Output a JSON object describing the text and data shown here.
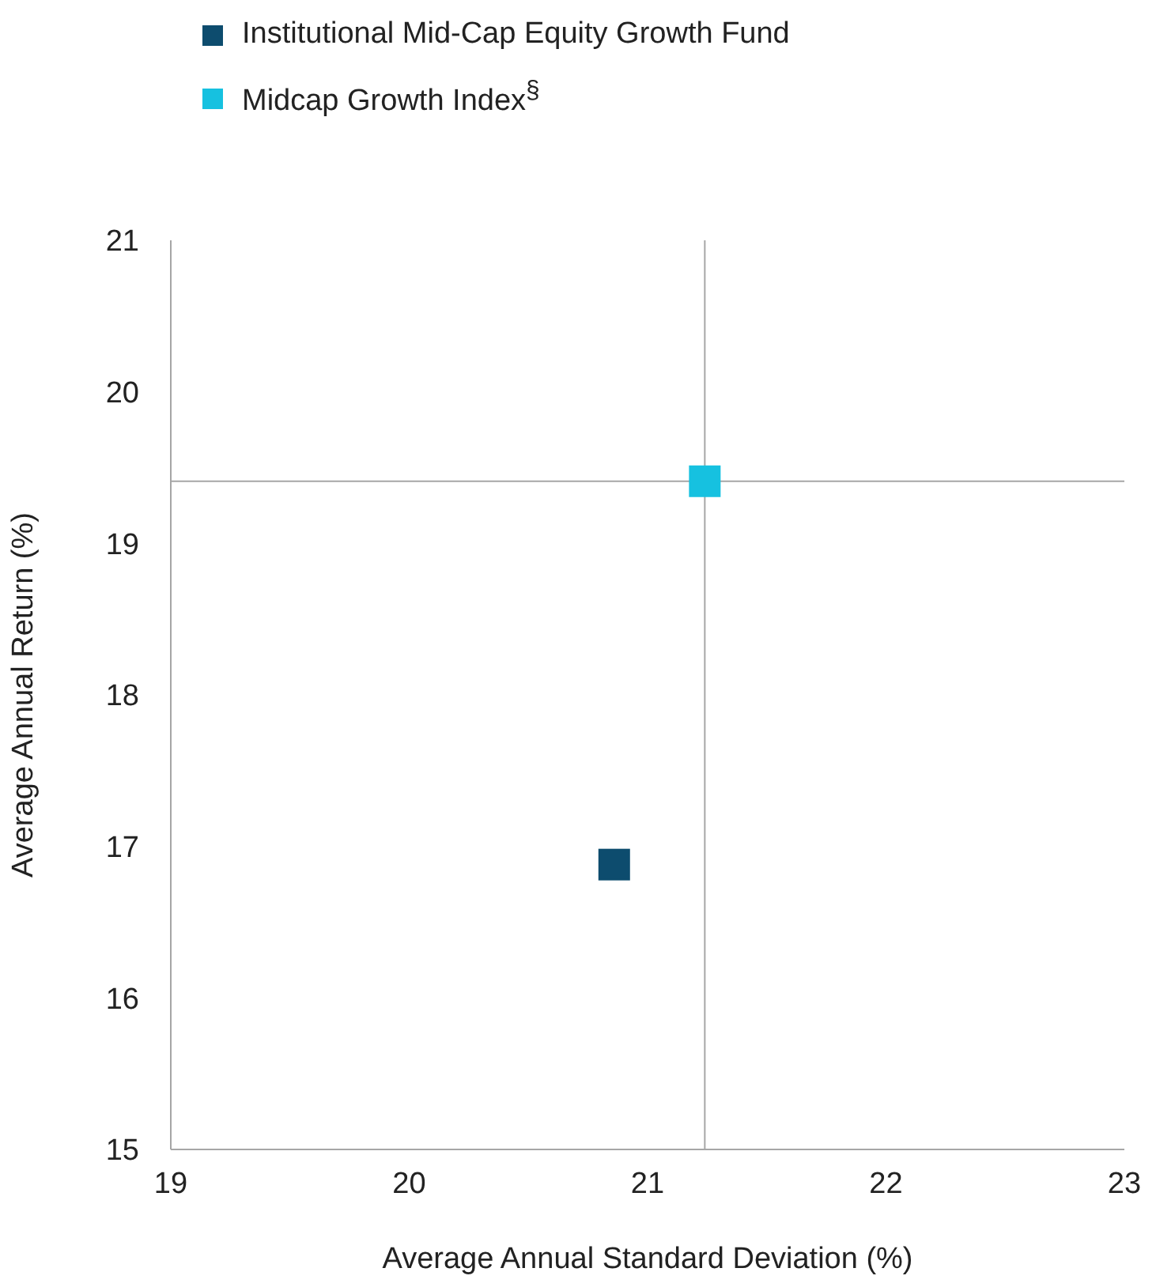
{
  "chart_data": {
    "type": "scatter",
    "xlabel": "Average Annual Standard Deviation (%)",
    "ylabel": "Average Annual Return (%)",
    "series": [
      {
        "name": "Institutional Mid-Cap Equity Growth Fund",
        "color": "#0d4c6e",
        "x": [
          20.86
        ],
        "values": [
          16.88
        ]
      },
      {
        "name": "Midcap Growth Index$^{§}$",
        "color": "#16c1e0",
        "x": [
          21.24
        ],
        "values": [
          19.41
        ]
      }
    ],
    "xlim": [
      19,
      23
    ],
    "xticks": [
      19,
      20,
      21,
      22,
      23
    ],
    "ylim": [
      15,
      21
    ],
    "yticks": [
      15,
      16,
      17,
      18,
      19,
      20,
      21
    ],
    "ref_lines": [
      {
        "axis": "x",
        "value": 21.24,
        "color": "#a6a6a6"
      },
      {
        "axis": "y",
        "value": 19.41,
        "color": "#a6a6a6"
      }
    ],
    "marker": "square",
    "legend": "top left",
    "grid": false
  }
}
